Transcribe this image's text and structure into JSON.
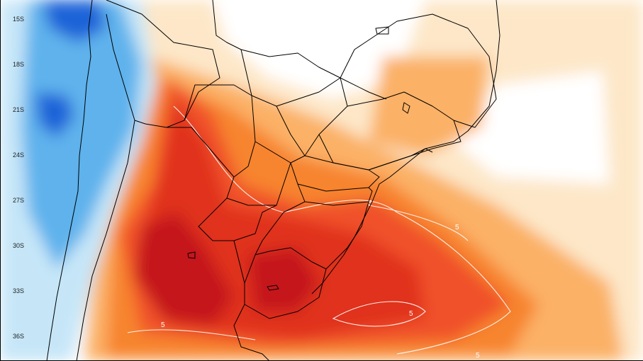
{
  "map": {
    "latitude_labels": [
      "15S",
      "18S",
      "21S",
      "24S",
      "27S",
      "30S",
      "33S",
      "36S"
    ],
    "contour_labels": [
      "5",
      "5",
      "5",
      "5",
      "5"
    ],
    "colors": {
      "ocean_background": "#ffffff",
      "light_orange": "#fde7c8",
      "orange": "#fbb166",
      "deep_orange": "#f7842e",
      "red_orange": "#f0512a",
      "red": "#e0301e",
      "dark_red": "#c5161a",
      "light_blue": "#c6e6f8",
      "blue": "#5fb2ec",
      "deep_blue": "#1a63d8",
      "border_line": "#000000",
      "contour_line": "#ffffff"
    }
  }
}
